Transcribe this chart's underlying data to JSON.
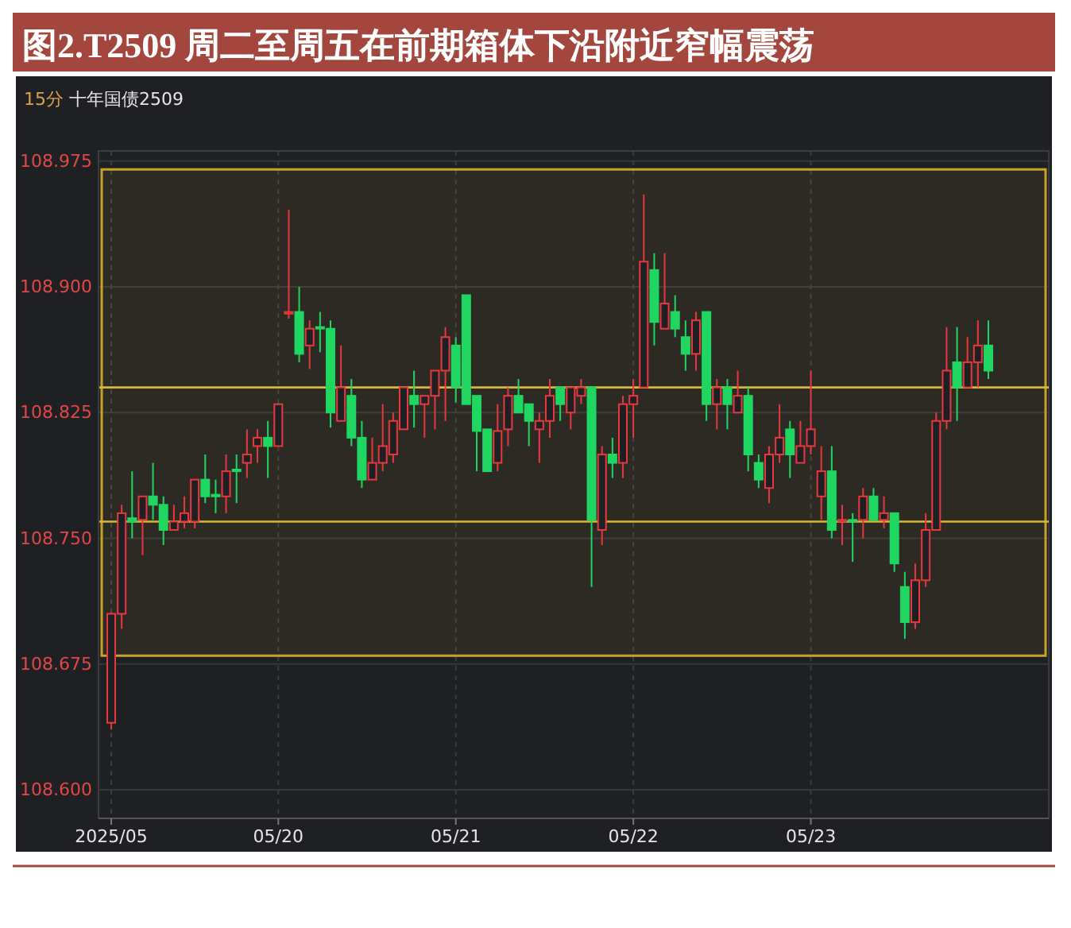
{
  "chart_data": {
    "type": "candlestick",
    "title": "图2.T2509 周二至周五在前期箱体下沿附近窄幅震荡",
    "subtitle": "15分 十年国债2509",
    "categories": [
      "2025/05",
      null,
      null,
      null,
      null,
      null,
      null,
      null,
      null,
      null,
      null,
      null,
      null,
      null,
      null,
      null,
      "05/20",
      null,
      null,
      null,
      null,
      null,
      null,
      null,
      null,
      null,
      null,
      null,
      null,
      null,
      null,
      null,
      null,
      "05/21",
      null,
      null,
      null,
      null,
      null,
      null,
      null,
      null,
      null,
      null,
      null,
      null,
      null,
      null,
      null,
      null,
      "05/22",
      null,
      null,
      null,
      null,
      null,
      null,
      null,
      null,
      null,
      null,
      null,
      null,
      null,
      null,
      null,
      null,
      "05/23",
      null,
      null,
      null,
      null,
      null,
      null,
      null,
      null,
      null,
      null,
      null,
      null,
      null,
      null,
      null,
      null,
      null
    ],
    "ohlc": [
      [
        108.64,
        108.706,
        108.636,
        108.705
      ],
      [
        108.705,
        108.77,
        108.696,
        108.765
      ],
      [
        108.762,
        108.79,
        108.75,
        108.76
      ],
      [
        108.761,
        108.775,
        108.74,
        108.775
      ],
      [
        108.775,
        108.795,
        108.761,
        108.77
      ],
      [
        108.77,
        108.775,
        108.746,
        108.755
      ],
      [
        108.755,
        108.77,
        108.755,
        108.76
      ],
      [
        108.76,
        108.775,
        108.756,
        108.765
      ],
      [
        108.76,
        108.785,
        108.756,
        108.785
      ],
      [
        108.785,
        108.8,
        108.771,
        108.775
      ],
      [
        108.776,
        108.785,
        108.765,
        108.775
      ],
      [
        108.775,
        108.8,
        108.765,
        108.79
      ],
      [
        108.791,
        108.8,
        108.771,
        108.79
      ],
      [
        108.795,
        108.815,
        108.786,
        108.8
      ],
      [
        108.805,
        108.815,
        108.795,
        108.81
      ],
      [
        108.81,
        108.82,
        108.786,
        108.805
      ],
      [
        108.805,
        108.83,
        108.805,
        108.83
      ],
      [
        108.884,
        108.946,
        108.881,
        108.885
      ],
      [
        108.885,
        108.9,
        108.855,
        108.86
      ],
      [
        108.865,
        108.88,
        108.851,
        108.875
      ],
      [
        108.876,
        108.885,
        108.861,
        108.875
      ],
      [
        108.875,
        108.88,
        108.816,
        108.825
      ],
      [
        108.82,
        108.865,
        108.82,
        108.84
      ],
      [
        108.835,
        108.845,
        108.805,
        108.81
      ],
      [
        108.81,
        108.82,
        108.78,
        108.785
      ],
      [
        108.785,
        108.81,
        108.785,
        108.795
      ],
      [
        108.795,
        108.83,
        108.79,
        108.805
      ],
      [
        108.8,
        108.825,
        108.795,
        108.82
      ],
      [
        108.815,
        108.84,
        108.815,
        108.84
      ],
      [
        108.835,
        108.85,
        108.816,
        108.83
      ],
      [
        108.83,
        108.835,
        108.81,
        108.835
      ],
      [
        108.835,
        108.85,
        108.815,
        108.85
      ],
      [
        108.85,
        108.876,
        108.82,
        108.87
      ],
      [
        108.865,
        108.87,
        108.831,
        108.84
      ],
      [
        108.895,
        108.895,
        108.83,
        108.83
      ],
      [
        108.835,
        108.835,
        108.79,
        108.814
      ],
      [
        108.815,
        108.815,
        108.79,
        108.79
      ],
      [
        108.795,
        108.83,
        108.79,
        108.814
      ],
      [
        108.815,
        108.84,
        108.805,
        108.835
      ],
      [
        108.835,
        108.845,
        108.825,
        108.825
      ],
      [
        108.83,
        108.83,
        108.805,
        108.82
      ],
      [
        108.815,
        108.825,
        108.795,
        108.82
      ],
      [
        108.82,
        108.845,
        108.81,
        108.835
      ],
      [
        108.84,
        108.84,
        108.82,
        108.83
      ],
      [
        108.825,
        108.84,
        108.815,
        108.84
      ],
      [
        108.835,
        108.845,
        108.83,
        108.84
      ],
      [
        108.84,
        108.84,
        108.721,
        108.761
      ],
      [
        108.755,
        108.805,
        108.746,
        108.8
      ],
      [
        108.8,
        108.81,
        108.786,
        108.795
      ],
      [
        108.795,
        108.835,
        108.786,
        108.83
      ],
      [
        108.83,
        108.845,
        108.81,
        108.835
      ],
      [
        108.84,
        108.955,
        108.84,
        108.915
      ],
      [
        108.91,
        108.92,
        108.865,
        108.879
      ],
      [
        108.875,
        108.92,
        108.875,
        108.89
      ],
      [
        108.885,
        108.895,
        108.87,
        108.875
      ],
      [
        108.87,
        108.88,
        108.85,
        108.86
      ],
      [
        108.86,
        108.885,
        108.85,
        108.88
      ],
      [
        108.885,
        108.885,
        108.82,
        108.83
      ],
      [
        108.83,
        108.845,
        108.815,
        108.84
      ],
      [
        108.84,
        108.845,
        108.815,
        108.83
      ],
      [
        108.825,
        108.85,
        108.825,
        108.835
      ],
      [
        108.835,
        108.84,
        108.79,
        108.8
      ],
      [
        108.795,
        108.8,
        108.78,
        108.785
      ],
      [
        108.78,
        108.805,
        108.771,
        108.8
      ],
      [
        108.8,
        108.83,
        108.795,
        108.81
      ],
      [
        108.815,
        108.82,
        108.786,
        108.8
      ],
      [
        108.795,
        108.82,
        108.795,
        108.805
      ],
      [
        108.805,
        108.85,
        108.8,
        108.815
      ],
      [
        108.775,
        108.805,
        108.761,
        108.79
      ],
      [
        108.79,
        108.805,
        108.75,
        108.755
      ],
      [
        108.76,
        108.77,
        108.746,
        108.761
      ],
      [
        108.761,
        108.765,
        108.736,
        108.76
      ],
      [
        108.761,
        108.78,
        108.75,
        108.775
      ],
      [
        108.775,
        108.78,
        108.761,
        108.761
      ],
      [
        108.761,
        108.775,
        108.756,
        108.765
      ],
      [
        108.765,
        108.765,
        108.73,
        108.735
      ],
      [
        108.721,
        108.73,
        108.69,
        108.7
      ],
      [
        108.7,
        108.735,
        108.696,
        108.725
      ],
      [
        108.725,
        108.765,
        108.721,
        108.755
      ],
      [
        108.755,
        108.825,
        108.755,
        108.82
      ],
      [
        108.82,
        108.876,
        108.815,
        108.85
      ],
      [
        108.855,
        108.876,
        108.82,
        108.84
      ],
      [
        108.84,
        108.87,
        108.84,
        108.855
      ],
      [
        108.855,
        108.88,
        108.84,
        108.865
      ],
      [
        108.865,
        108.88,
        108.845,
        108.85
      ]
    ],
    "colors": [
      "#e8383d",
      "#e8383d",
      "#1fd760",
      "#e8383d",
      "#1fd760",
      "#1fd760",
      "#e8383d",
      "#e8383d",
      "#e8383d",
      "#1fd760",
      "#1fd760",
      "#e8383d",
      "#1fd760",
      "#e8383d",
      "#e8383d",
      "#1fd760",
      "#e8383d",
      "#e8383d",
      "#1fd760",
      "#e8383d",
      "#1fd760",
      "#1fd760",
      "#e8383d",
      "#1fd760",
      "#1fd760",
      "#e8383d",
      "#e8383d",
      "#e8383d",
      "#e8383d",
      "#1fd760",
      "#e8383d",
      "#e8383d",
      "#e8383d",
      "#1fd760",
      "#1fd760",
      "#1fd760",
      "#1fd760",
      "#e8383d",
      "#e8383d",
      "#1fd760",
      "#1fd760",
      "#e8383d",
      "#e8383d",
      "#1fd760",
      "#e8383d",
      "#e8383d",
      "#1fd760",
      "#e8383d",
      "#1fd760",
      "#e8383d",
      "#e8383d",
      "#e8383d",
      "#1fd760",
      "#e8383d",
      "#1fd760",
      "#1fd760",
      "#e8383d",
      "#1fd760",
      "#e8383d",
      "#1fd760",
      "#e8383d",
      "#1fd760",
      "#1fd760",
      "#e8383d",
      "#e8383d",
      "#1fd760",
      "#e8383d",
      "#e8383d",
      "#e8383d",
      "#1fd760",
      "#e8383d",
      "#1fd760",
      "#e8383d",
      "#1fd760",
      "#e8383d",
      "#1fd760",
      "#1fd760",
      "#e8383d",
      "#e8383d",
      "#e8383d",
      "#e8383d",
      "#1fd760",
      "#e8383d",
      "#e8383d",
      "#1fd760"
    ],
    "ylim": [
      108.583,
      108.981
    ],
    "yticks": [
      {
        "value": 108.6,
        "label": "108.600"
      },
      {
        "value": 108.675,
        "label": "108.675"
      },
      {
        "value": 108.75,
        "label": "108.750"
      },
      {
        "value": 108.825,
        "label": "108.825"
      },
      {
        "value": 108.9,
        "label": "108.900"
      },
      {
        "value": 108.975,
        "label": "108.975"
      }
    ],
    "grid": true,
    "ref_lines": [
      {
        "axis": "y",
        "value": 108.84,
        "color": "#d8b838"
      },
      {
        "axis": "y",
        "value": 108.76,
        "color": "#d8b838"
      }
    ],
    "bands": [
      {
        "axis": "y",
        "from": 108.68,
        "to": 108.97,
        "color": "#c9a227"
      }
    ]
  }
}
